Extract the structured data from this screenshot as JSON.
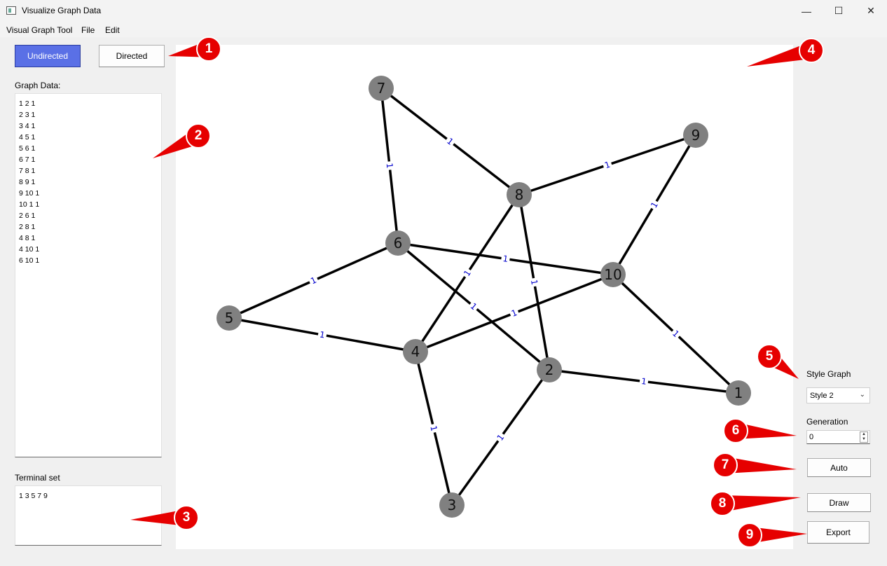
{
  "window": {
    "title": "Visualize Graph Data",
    "minimize_glyph": "—",
    "maximize_glyph": "☐",
    "close_glyph": "✕"
  },
  "menu": [
    "Visual Graph Tool",
    "File",
    "Edit"
  ],
  "mode_buttons": {
    "undirected": "Undirected",
    "directed": "Directed",
    "active": "Undirected",
    "active_color": "#5a70e6"
  },
  "graph_data": {
    "label": "Graph Data:",
    "text": "1 2 1\n2 3 1\n3 4 1\n4 5 1\n5 6 1\n6 7 1\n7 8 1\n8 9 1\n9 10 1\n10 1 1\n2 6 1\n2 8 1\n4 8 1\n4 10 1\n6 10 1"
  },
  "terminal_set": {
    "label": "Terminal set",
    "text": "1 3 5 7 9"
  },
  "right_panel": {
    "style_label": "Style Graph",
    "style_value": "Style 2",
    "generation_label": "Generation",
    "generation_value": "0",
    "auto_label": "Auto",
    "draw_label": "Draw",
    "export_label": "Export"
  },
  "graph": {
    "node_color": "#808080",
    "edge_color": "#000000",
    "weight_label_color": "#0000cc",
    "nodes": [
      "1",
      "2",
      "3",
      "4",
      "5",
      "6",
      "7",
      "8",
      "9",
      "10"
    ],
    "edges": [
      {
        "from": "1",
        "to": "2",
        "weight": "1"
      },
      {
        "from": "2",
        "to": "3",
        "weight": "1"
      },
      {
        "from": "3",
        "to": "4",
        "weight": "1"
      },
      {
        "from": "4",
        "to": "5",
        "weight": "1"
      },
      {
        "from": "5",
        "to": "6",
        "weight": "1"
      },
      {
        "from": "6",
        "to": "7",
        "weight": "1"
      },
      {
        "from": "7",
        "to": "8",
        "weight": "1"
      },
      {
        "from": "8",
        "to": "9",
        "weight": "1"
      },
      {
        "from": "9",
        "to": "10",
        "weight": "1"
      },
      {
        "from": "10",
        "to": "1",
        "weight": "1"
      },
      {
        "from": "2",
        "to": "6",
        "weight": "1"
      },
      {
        "from": "2",
        "to": "8",
        "weight": "1"
      },
      {
        "from": "4",
        "to": "8",
        "weight": "1"
      },
      {
        "from": "4",
        "to": "10",
        "weight": "1"
      },
      {
        "from": "6",
        "to": "10",
        "weight": "1"
      }
    ]
  },
  "annotations": {
    "color": "#e60000",
    "numbers": [
      "1",
      "2",
      "3",
      "4",
      "5",
      "6",
      "7",
      "8",
      "9"
    ]
  }
}
